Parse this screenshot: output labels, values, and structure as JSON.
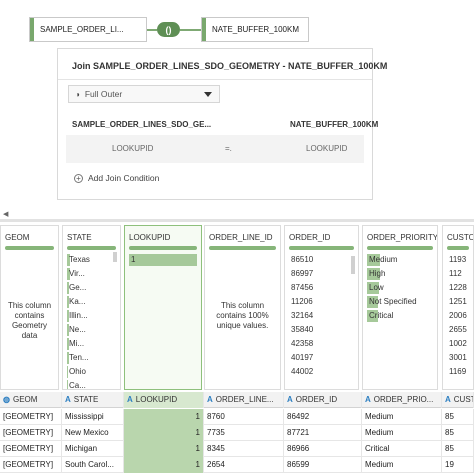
{
  "diagram": {
    "left_source": "SAMPLE_ORDER_LI...",
    "right_source": "NATE_BUFFER_100KM",
    "join_symbol": "()"
  },
  "join_panel": {
    "title": "Join SAMPLE_ORDER_LINES_SDO_GEOMETRY - NATE_BUFFER_100KM",
    "join_type": "Full Outer",
    "left_header": "SAMPLE_ORDER_LINES_SDO_GE...",
    "right_header": "NATE_BUFFER_100KM",
    "condition": {
      "left": "LOOKUPID",
      "op": "=.",
      "right": "LOOKUPID"
    },
    "add_condition_label": "Add Join Condition"
  },
  "profile_cards": [
    {
      "name": "GEOM",
      "message": "This column contains Geometry data",
      "items": []
    },
    {
      "name": "STATE",
      "items": [
        {
          "label": "Texas",
          "level": 1.0
        },
        {
          "label": "Vir...",
          "level": 0.9
        },
        {
          "label": "Ge...",
          "level": 0.8
        },
        {
          "label": "Ka...",
          "level": 0.75
        },
        {
          "label": "Illin...",
          "level": 0.7
        },
        {
          "label": "Ne...",
          "level": 0.65
        },
        {
          "label": "Mi...",
          "level": 0.6
        },
        {
          "label": "Ten...",
          "level": 0.55
        },
        {
          "label": "Ohio",
          "level": 0.5
        },
        {
          "label": "Ca...",
          "level": 0.45
        }
      ]
    },
    {
      "name": "LOOKUPID",
      "items": [
        {
          "label": "1",
          "level": 1.0
        }
      ]
    },
    {
      "name": "ORDER_LINE_ID",
      "message": "This column contains 100% unique values.",
      "items": []
    },
    {
      "name": "ORDER_ID",
      "items": [
        {
          "label": "86510",
          "level": 0
        },
        {
          "label": "86997",
          "level": 0
        },
        {
          "label": "87456",
          "level": 0
        },
        {
          "label": "11206",
          "level": 0
        },
        {
          "label": "32164",
          "level": 0
        },
        {
          "label": "35840",
          "level": 0
        },
        {
          "label": "42358",
          "level": 0
        },
        {
          "label": "40197",
          "level": 0
        },
        {
          "label": "44002",
          "level": 0
        }
      ]
    },
    {
      "name": "ORDER_PRIORITY",
      "items": [
        {
          "label": "Medium",
          "level": 0.2
        },
        {
          "label": "High",
          "level": 0.19
        },
        {
          "label": "Low",
          "level": 0.18
        },
        {
          "label": "Not Specified",
          "level": 0.17
        },
        {
          "label": "Critical",
          "level": 0.16
        }
      ]
    },
    {
      "name": "CUSTO",
      "items": [
        {
          "label": "1193",
          "level": 0
        },
        {
          "label": "112",
          "level": 0
        },
        {
          "label": "1228",
          "level": 0
        },
        {
          "label": "1251",
          "level": 0
        },
        {
          "label": "2006",
          "level": 0
        },
        {
          "label": "2655",
          "level": 0
        },
        {
          "label": "1002",
          "level": 0
        },
        {
          "label": "3001",
          "level": 0
        },
        {
          "label": "1169",
          "level": 0
        }
      ]
    }
  ],
  "grid": {
    "headers": [
      "GEOM",
      "STATE",
      "LOOKUPID",
      "ORDER_LINE...",
      "ORDER_ID",
      "ORDER_PRIO...",
      "CUST"
    ],
    "header_type_icons": [
      "◍",
      "A",
      "A",
      "A",
      "A",
      "A",
      "A"
    ],
    "rows": [
      [
        "[GEOMETRY]",
        "Mississippi",
        "1",
        "8760",
        "86492",
        "Medium",
        "85"
      ],
      [
        "[GEOMETRY]",
        "New Mexico",
        "1",
        "7735",
        "87721",
        "Medium",
        "85"
      ],
      [
        "[GEOMETRY]",
        "Michigan",
        "1",
        "8345",
        "86966",
        "Critical",
        "85"
      ],
      [
        "[GEOMETRY]",
        "South Carol...",
        "1",
        "2654",
        "86599",
        "Medium",
        "19"
      ]
    ]
  },
  "colors": {
    "accent_green": "#86b579",
    "selected_fill": "#b9d6ad",
    "type_icon_blue": "#2d7fc1"
  }
}
